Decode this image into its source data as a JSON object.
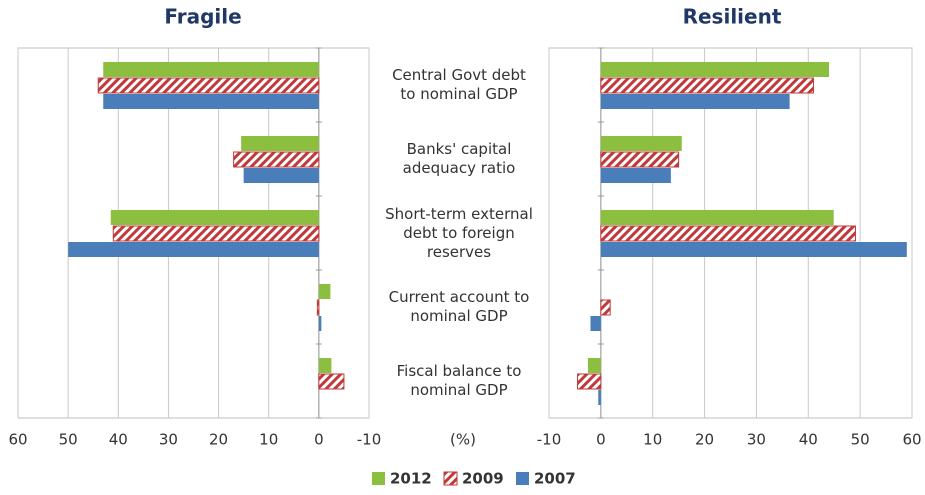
{
  "chart_data": [
    {
      "type": "bar",
      "title": "Fragile",
      "xlabel": "(%)",
      "categories": [
        "Central Govt debt\nto nominal GDP",
        "Banks' capital\nadequacy ratio",
        "Short-term external\ndebt to foreign\nreserves",
        "Current account to\nnominal GDP",
        "Fiscal balance to\nnominal GDP"
      ],
      "series": [
        {
          "name": "2012",
          "color": "#8cbf3f",
          "values": [
            43,
            15.5,
            41.5,
            -2.3,
            -2.5
          ]
        },
        {
          "name": "2009",
          "color": "#c0393b",
          "pattern": "hatch",
          "values": [
            44,
            17,
            41,
            0.3,
            -5
          ]
        },
        {
          "name": "2007",
          "color": "#4a7ebb",
          "values": [
            43,
            15,
            50,
            -0.5,
            0
          ]
        }
      ],
      "xlim": [
        60,
        -10
      ],
      "xticks": [
        60,
        50,
        40,
        30,
        20,
        10,
        0,
        -10
      ],
      "grid": true
    },
    {
      "type": "bar",
      "title": "Resilient",
      "series": [
        {
          "values": [
            44,
            15.6,
            44.9,
            0,
            -2.5
          ]
        },
        {
          "values": [
            41,
            15,
            49.1,
            1.8,
            -4.5
          ]
        },
        {
          "values": [
            36.4,
            13.5,
            59,
            -2,
            -0.5
          ]
        }
      ],
      "xlim": [
        -10,
        60
      ],
      "xticks": [
        -10,
        0,
        10,
        20,
        30,
        40,
        50,
        60
      ],
      "grid": true
    }
  ]
}
